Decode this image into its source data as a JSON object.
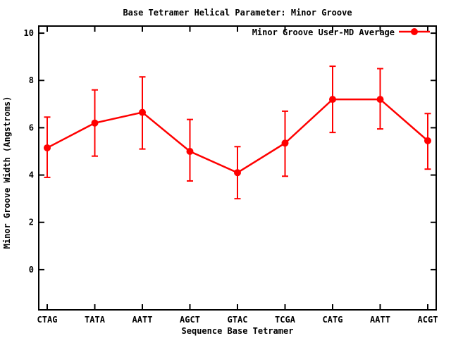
{
  "window": {
    "background": "#ffffff"
  },
  "colors": {
    "series": "#ff0000",
    "axis": "#000000",
    "text": "#000000",
    "background": "#ffffff"
  },
  "legend": {
    "label": "Minor Groove User-MD Average",
    "marker": "filled-circle-on-line"
  },
  "chart_data": {
    "type": "line",
    "title": "Base Tetramer Helical Parameter: Minor Groove",
    "xlabel": "Sequence Base Tetramer",
    "ylabel": "Minor Groove Width (Angstroms)",
    "categories": [
      "CTAG",
      "TATA",
      "AATT",
      "AGCT",
      "GTAC",
      "TCGA",
      "CATG",
      "AATT",
      "ACGT"
    ],
    "series": [
      {
        "name": "Minor Groove User-MD Average",
        "values": [
          5.15,
          6.2,
          6.65,
          5.0,
          4.1,
          5.35,
          7.2,
          7.2,
          5.45
        ],
        "error_low": [
          3.9,
          4.8,
          5.1,
          3.75,
          3.0,
          3.95,
          5.8,
          5.95,
          4.25
        ],
        "error_high": [
          6.45,
          7.6,
          8.15,
          6.35,
          5.2,
          6.7,
          8.6,
          8.5,
          6.6
        ],
        "color": "#ff0000",
        "marker": "filled-circle",
        "error_bars": "vertical-with-caps"
      }
    ],
    "yticks": [
      0,
      2,
      4,
      6,
      8,
      10
    ],
    "ylim": [
      -1.7,
      10.3
    ],
    "grid": false,
    "tick_style": "inward-mirrored",
    "legend_position": "top-right-inside"
  }
}
